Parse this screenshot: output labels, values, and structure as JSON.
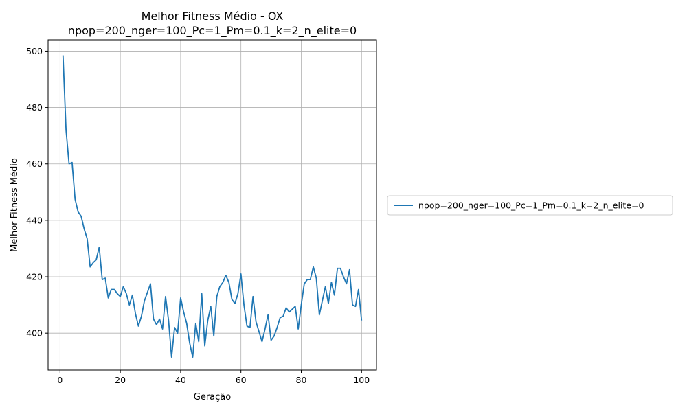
{
  "chart_data": {
    "type": "line",
    "title": "Melhor Fitness Médio - OX",
    "subtitle": "npop=200_nger=100_Pc=1_Pm=0.1_k=2_n_elite=0",
    "xlabel": "Geração",
    "ylabel": "Melhor Fitness Médio",
    "xlim": [
      -3.95,
      104.95
    ],
    "ylim": [
      386.9,
      504.0
    ],
    "xticks": [
      0,
      20,
      40,
      60,
      80,
      100
    ],
    "yticks": [
      400,
      420,
      440,
      460,
      480,
      500
    ],
    "grid": true,
    "legend_position": "outside-right",
    "series": [
      {
        "name": "npop=200_nger=100_Pc=1_Pm=0.1_k=2_n_elite=0",
        "color": "#1f77b4",
        "x": [
          1,
          2,
          3,
          4,
          5,
          6,
          7,
          8,
          9,
          10,
          11,
          12,
          13,
          14,
          15,
          16,
          17,
          18,
          19,
          20,
          21,
          22,
          23,
          24,
          25,
          26,
          27,
          28,
          29,
          30,
          31,
          32,
          33,
          34,
          35,
          36,
          37,
          38,
          39,
          40,
          41,
          42,
          43,
          44,
          45,
          46,
          47,
          48,
          49,
          50,
          51,
          52,
          53,
          54,
          55,
          56,
          57,
          58,
          59,
          60,
          61,
          62,
          63,
          64,
          65,
          66,
          67,
          68,
          69,
          70,
          71,
          72,
          73,
          74,
          75,
          76,
          77,
          78,
          79,
          80,
          81,
          82,
          83,
          84,
          85,
          86,
          87,
          88,
          89,
          90,
          91,
          92,
          93,
          94,
          95,
          96,
          97,
          98,
          99,
          100
        ],
        "values": [
          498.5,
          472.0,
          460.0,
          460.5,
          447.5,
          443.0,
          441.5,
          437.0,
          433.5,
          423.5,
          425.0,
          426.0,
          430.5,
          419.0,
          419.5,
          412.5,
          415.5,
          415.5,
          414.0,
          413.0,
          416.5,
          414.0,
          410.0,
          413.5,
          407.0,
          402.5,
          406.0,
          411.5,
          414.5,
          417.5,
          405.0,
          403.0,
          405.0,
          401.5,
          413.0,
          404.5,
          391.5,
          402.0,
          400.0,
          412.5,
          407.5,
          403.5,
          396.5,
          391.5,
          403.5,
          397.0,
          414.0,
          395.5,
          404.5,
          409.5,
          399.0,
          413.0,
          416.5,
          418.0,
          420.5,
          418.0,
          412.0,
          410.5,
          414.0,
          421.0,
          410.0,
          402.5,
          402.0,
          413.0,
          404.0,
          400.5,
          397.0,
          401.5,
          406.5,
          397.5,
          399.0,
          402.0,
          405.5,
          406.0,
          409.0,
          407.5,
          408.5,
          409.5,
          401.5,
          410.0,
          417.5,
          419.0,
          419.0,
          423.5,
          419.5,
          406.5,
          411.5,
          416.5,
          410.5,
          418.0,
          413.5,
          423.0,
          423.0,
          420.0,
          417.5,
          422.5,
          410.0,
          409.5,
          415.5,
          404.5
        ]
      }
    ]
  }
}
